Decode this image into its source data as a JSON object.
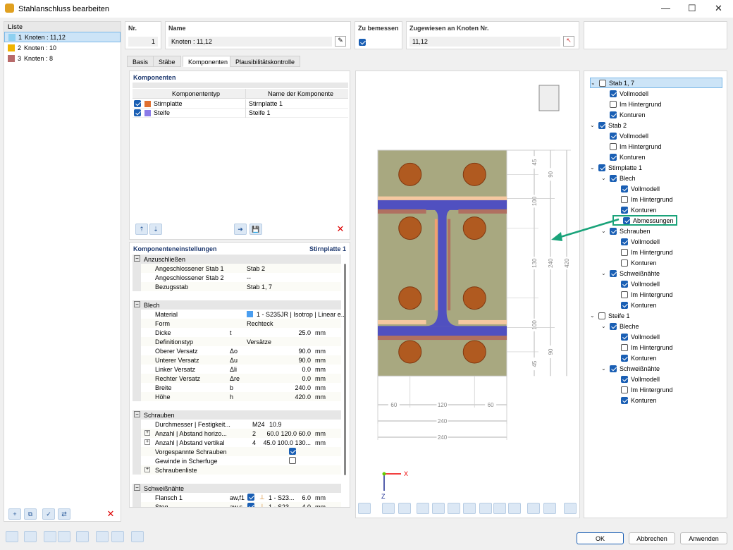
{
  "window": {
    "title": "Stahlanschluss bearbeiten"
  },
  "list": {
    "header": "Liste",
    "items": [
      {
        "num": "1",
        "label": "Knoten : 11,12",
        "color": "#8ed0f0",
        "selected": true
      },
      {
        "num": "2",
        "label": "Knoten : 10",
        "color": "#f0b400"
      },
      {
        "num": "3",
        "label": "Knoten : 8",
        "color": "#b86a6a"
      }
    ]
  },
  "header": {
    "nr_label": "Nr.",
    "nr_value": "1",
    "name_label": "Name",
    "name_value": "Knoten : 11,12",
    "design_label": "Zu bemessen",
    "design_checked": true,
    "assigned_label": "Zugewiesen an Knoten Nr.",
    "assigned_value": "11,12"
  },
  "tabs": [
    {
      "label": "Basis"
    },
    {
      "label": "Stäbe"
    },
    {
      "label": "Komponenten",
      "active": true
    },
    {
      "label": "Plausibilitätskontrolle"
    }
  ],
  "components": {
    "title": "Komponenten",
    "col_type": "Komponententyp",
    "col_name": "Name der Komponente",
    "rows": [
      {
        "type": "Stirnplatte",
        "name": "Stirnplatte 1",
        "color": "#e07030",
        "checked": true
      },
      {
        "type": "Steife",
        "name": "Steife 1",
        "color": "#8a7ae8",
        "checked": true
      }
    ]
  },
  "settings": {
    "title": "Komponenteneinstellungen",
    "subtitle": "Stirnplatte 1",
    "rows": [
      {
        "section": "Anzuschließen"
      },
      {
        "name": "Angeschlossener Stab 1",
        "sym": "",
        "val": "Stab 2",
        "unit": "",
        "align": "left"
      },
      {
        "name": "Angeschlossener Stab 2",
        "sym": "",
        "val": "--",
        "unit": "",
        "align": "left"
      },
      {
        "name": "Bezugsstab",
        "sym": "",
        "val": "Stab 1, 7",
        "unit": "",
        "align": "left"
      },
      {
        "blank": true
      },
      {
        "section": "Blech"
      },
      {
        "name": "Material",
        "sym": "",
        "val": "1 - S235JR | Isotrop | Linear e...",
        "unit": "",
        "align": "left",
        "swatch": "#4a9ef0"
      },
      {
        "name": "Form",
        "sym": "",
        "val": "Rechteck",
        "unit": "",
        "align": "left"
      },
      {
        "name": "Dicke",
        "sym": "t",
        "val": "25.0",
        "unit": "mm"
      },
      {
        "name": "Definitionstyp",
        "sym": "",
        "val": "Versätze",
        "unit": "",
        "align": "left"
      },
      {
        "name": "Oberer Versatz",
        "sym": "Δo",
        "val": "90.0",
        "unit": "mm"
      },
      {
        "name": "Unterer Versatz",
        "sym": "Δu",
        "val": "90.0",
        "unit": "mm"
      },
      {
        "name": "Linker Versatz",
        "sym": "Δli",
        "val": "0.0",
        "unit": "mm"
      },
      {
        "name": "Rechter Versatz",
        "sym": "Δre",
        "val": "0.0",
        "unit": "mm"
      },
      {
        "name": "Breite",
        "sym": "b",
        "val": "240.0",
        "unit": "mm"
      },
      {
        "name": "Höhe",
        "sym": "h",
        "val": "420.0",
        "unit": "mm"
      },
      {
        "blank": true
      },
      {
        "section": "Schrauben"
      },
      {
        "name": "Durchmesser | Festigkeit...",
        "sym": "",
        "val": "M24",
        "val2": "10.9",
        "unit": ""
      },
      {
        "name": "Anzahl | Abstand horizo...",
        "expand": true,
        "sym": "",
        "val": "2",
        "val2": "60.0 120.0 60.0",
        "unit": "mm"
      },
      {
        "name": "Anzahl | Abstand vertikal",
        "expand": true,
        "sym": "",
        "val": "4",
        "val2": "45.0 100.0 130...",
        "unit": "mm"
      },
      {
        "name": "Vorgespannte Schrauben",
        "check": true
      },
      {
        "name": "Gewinde in Scherfuge",
        "check": false
      },
      {
        "name": "Schraubenliste",
        "expand": true
      },
      {
        "blank": true
      },
      {
        "section": "Schweißnähte"
      },
      {
        "name": "Flansch 1",
        "sym": "aw,f1",
        "weld": true,
        "val2": "1 - S23...",
        "val": "6.0",
        "unit": "mm"
      },
      {
        "name": "Steg",
        "sym": "aw,s",
        "weld": true,
        "val2": "1 - S23...",
        "val": "4.0",
        "unit": "mm"
      }
    ]
  },
  "drawing": {
    "dims_v1": [
      "45",
      "100",
      "130",
      "100",
      "45"
    ],
    "dims_v2": [
      "90",
      "240",
      "90"
    ],
    "dims_v3": [
      "420"
    ],
    "dims_h1": [
      "60",
      "120",
      "60"
    ],
    "dims_h2": [
      "240"
    ],
    "dims_h3": [
      "240"
    ],
    "axis_x": "X",
    "axis_z": "Z",
    "accent": "#1aa37a"
  },
  "tree": [
    {
      "l": 0,
      "label": "Stab 1, 7",
      "c": false,
      "sel": true,
      "exp": true
    },
    {
      "l": 1,
      "label": "Vollmodell",
      "c": true
    },
    {
      "l": 1,
      "label": "Im Hintergrund",
      "c": false
    },
    {
      "l": 1,
      "label": "Konturen",
      "c": true
    },
    {
      "l": 0,
      "label": "Stab 2",
      "c": true,
      "exp": true
    },
    {
      "l": 1,
      "label": "Vollmodell",
      "c": true
    },
    {
      "l": 1,
      "label": "Im Hintergrund",
      "c": false
    },
    {
      "l": 1,
      "label": "Konturen",
      "c": true
    },
    {
      "l": 0,
      "label": "Stirnplatte 1",
      "c": true,
      "exp": true
    },
    {
      "l": 1,
      "label": "Blech",
      "c": true,
      "exp": true
    },
    {
      "l": 2,
      "label": "Vollmodell",
      "c": true
    },
    {
      "l": 2,
      "label": "Im Hintergrund",
      "c": false
    },
    {
      "l": 2,
      "label": "Konturen",
      "c": true
    },
    {
      "l": 2,
      "label": "Abmessungen",
      "c": true,
      "hl": true
    },
    {
      "l": 1,
      "label": "Schrauben",
      "c": true,
      "exp": true
    },
    {
      "l": 2,
      "label": "Vollmodell",
      "c": true
    },
    {
      "l": 2,
      "label": "Im Hintergrund",
      "c": false
    },
    {
      "l": 2,
      "label": "Konturen",
      "c": false
    },
    {
      "l": 1,
      "label": "Schweißnähte",
      "c": true,
      "exp": true
    },
    {
      "l": 2,
      "label": "Vollmodell",
      "c": true
    },
    {
      "l": 2,
      "label": "Im Hintergrund",
      "c": false
    },
    {
      "l": 2,
      "label": "Konturen",
      "c": true
    },
    {
      "l": 0,
      "label": "Steife 1",
      "c": false,
      "exp": true
    },
    {
      "l": 1,
      "label": "Bleche",
      "c": true,
      "exp": true
    },
    {
      "l": 2,
      "label": "Vollmodell",
      "c": true
    },
    {
      "l": 2,
      "label": "Im Hintergrund",
      "c": false
    },
    {
      "l": 2,
      "label": "Konturen",
      "c": true
    },
    {
      "l": 1,
      "label": "Schweißnähte",
      "c": true,
      "exp": true
    },
    {
      "l": 2,
      "label": "Vollmodell",
      "c": true
    },
    {
      "l": 2,
      "label": "Im Hintergrund",
      "c": false
    },
    {
      "l": 2,
      "label": "Konturen",
      "c": true
    }
  ],
  "footer": {
    "ok": "OK",
    "cancel": "Abbrechen",
    "apply": "Anwenden"
  }
}
